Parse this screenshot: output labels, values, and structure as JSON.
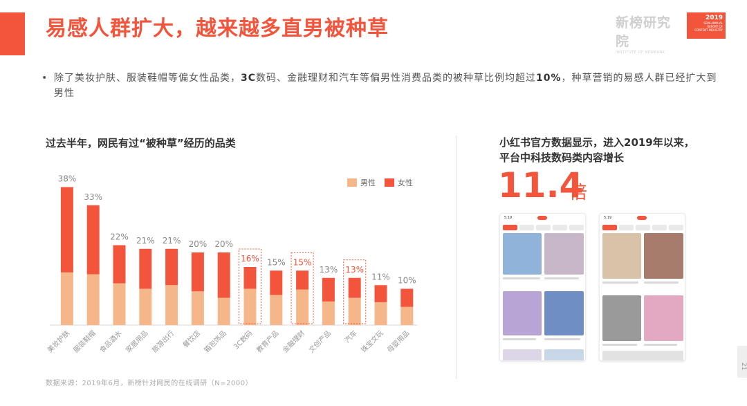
{
  "header": {
    "title": "易感人群扩大，越来越多直男被种草",
    "brand_name": "新榜研究院",
    "brand_sub": "INSTITUTE OF NEWRANK",
    "badge_year": "2019",
    "badge_lines": [
      "SEMI-ANNUAL",
      "REPORT OF",
      "CONTENT INDUSTRY"
    ]
  },
  "bullet": {
    "dot": "•",
    "text_1": "除了美妆护肤、服装鞋帽等偏女性品类，",
    "bold_1": "3C",
    "text_2": "数码、金融理财和汽车等偏男性消费品类的被种草比例均超过",
    "bold_2": "10%",
    "text_3": "，种草营销的易感人群已经扩大到男性"
  },
  "chart_title": "过去半年，网民有过“被种草”经历的品类",
  "chart_data": {
    "type": "bar",
    "stacked": true,
    "categories": [
      "美妆护肤",
      "服装鞋帽",
      "食品酒水",
      "家居用品",
      "旅游出行",
      "餐饮店",
      "箱包饰品",
      "3C数码",
      "教育产品",
      "金融理财",
      "文创产品",
      "汽车",
      "珠宝文玩",
      "母婴用品"
    ],
    "series": [
      {
        "name": "男性",
        "color": "#f5b78a",
        "values": [
          14.5,
          14.0,
          11.5,
          10.0,
          11.0,
          9.3,
          7.5,
          10.0,
          8.3,
          9.8,
          6.5,
          7.5,
          6.3,
          5.0
        ]
      },
      {
        "name": "女性",
        "color": "#f2553b",
        "values": [
          23.5,
          19.0,
          10.5,
          11.0,
          10.0,
          10.7,
          12.5,
          6.0,
          6.7,
          5.2,
          6.5,
          5.5,
          4.7,
          5.0
        ]
      }
    ],
    "total_labels": [
      "38%",
      "33%",
      "22%",
      "21%",
      "21%",
      "20%",
      "20%",
      "16%",
      "15%",
      "15%",
      "13%",
      "13%",
      "11%",
      "10%"
    ],
    "highlighted": [
      "3C数码",
      "金融理财",
      "汽车"
    ],
    "highlight_color": "#f2553b",
    "label_color": "#888888",
    "ylim": [
      0,
      40
    ],
    "grid": false,
    "legend_position": "top-right"
  },
  "right": {
    "heading_line1": "小红书官方数据显示，进入2019年以来，",
    "heading_line2": "平台中科技数码类内容增长",
    "big_number": "11.4",
    "big_unit": "倍",
    "phone_time": "5:19"
  },
  "source": "数据来源：2019年6月，新榜针对网民的在线调研（N=2000）",
  "page_number": "21"
}
